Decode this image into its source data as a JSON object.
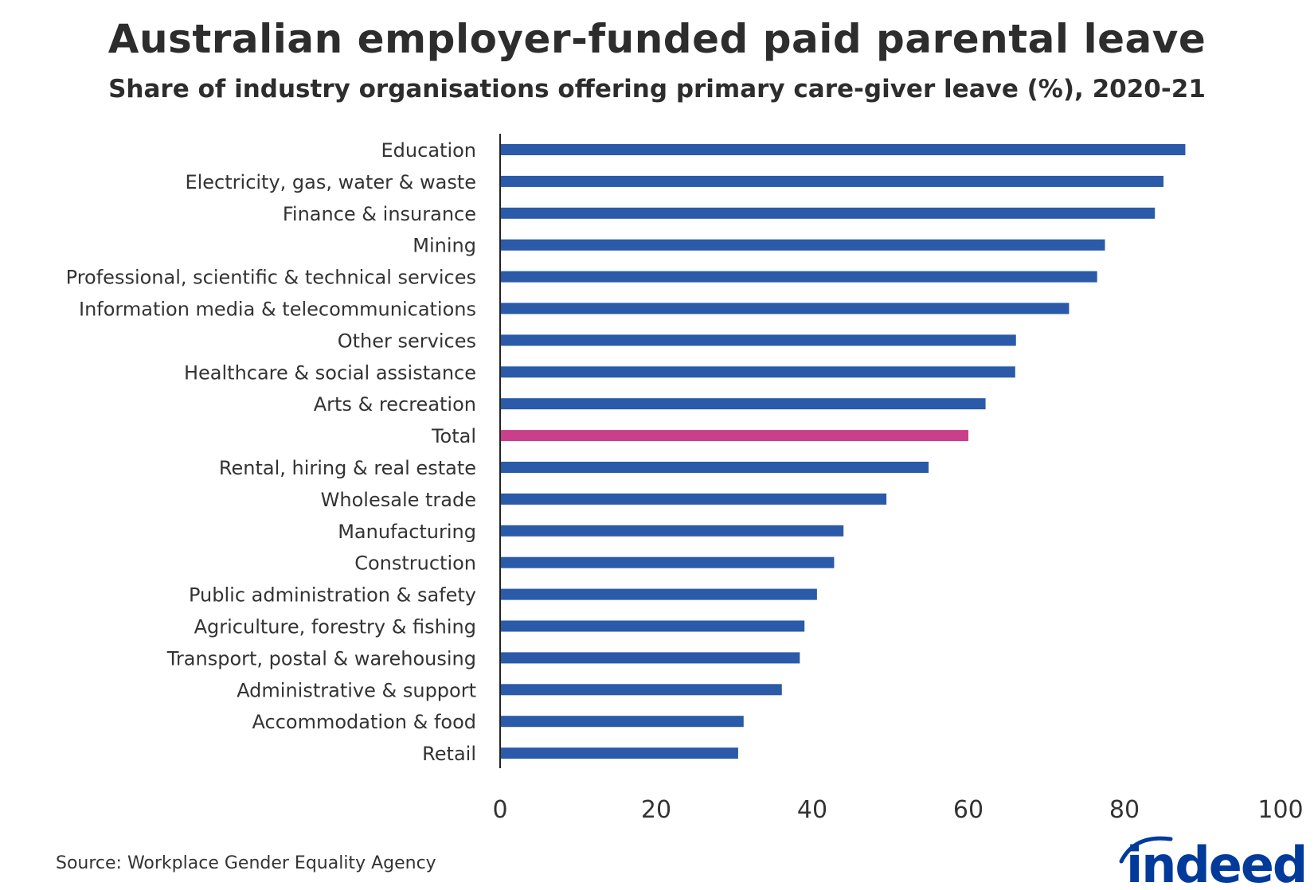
{
  "chart_data": {
    "type": "bar",
    "orientation": "horizontal",
    "title": "Australian employer-funded paid parental leave",
    "subtitle": "Share of industry organisations offering primary care-giver leave (%), 2020-21",
    "categories": [
      "Education",
      "Electricity, gas, water & waste",
      "Finance & insurance",
      "Mining",
      "Professional, scientific & technical services",
      "Information media & telecommunications",
      "Other services",
      "Healthcare & social assistance",
      "Arts & recreation",
      "Total",
      "Rental, hiring & real estate",
      "Wholesale trade",
      "Manufacturing",
      "Construction",
      "Public administration & safety",
      "Agriculture, forestry & fishing",
      "Transport, postal & warehousing",
      "Administrative & support",
      "Accommodation & food",
      "Retail"
    ],
    "values": [
      87.8,
      85.0,
      83.9,
      77.5,
      76.5,
      72.9,
      66.1,
      66.0,
      62.2,
      60.0,
      54.9,
      49.5,
      44.0,
      42.8,
      40.6,
      39.0,
      38.4,
      36.1,
      31.2,
      30.5
    ],
    "highlight": "Total",
    "xlim": [
      0,
      100
    ],
    "xticks": [
      0,
      20,
      40,
      60,
      80,
      100
    ],
    "xlabel": "",
    "ylabel": "",
    "grid": false,
    "colors": {
      "bar": "#2a5aa8",
      "highlight": "#c8408a"
    }
  },
  "source": "Source: Workplace Gender Equality Agency",
  "logo": {
    "text": "indeed",
    "color": "#003a9b"
  }
}
